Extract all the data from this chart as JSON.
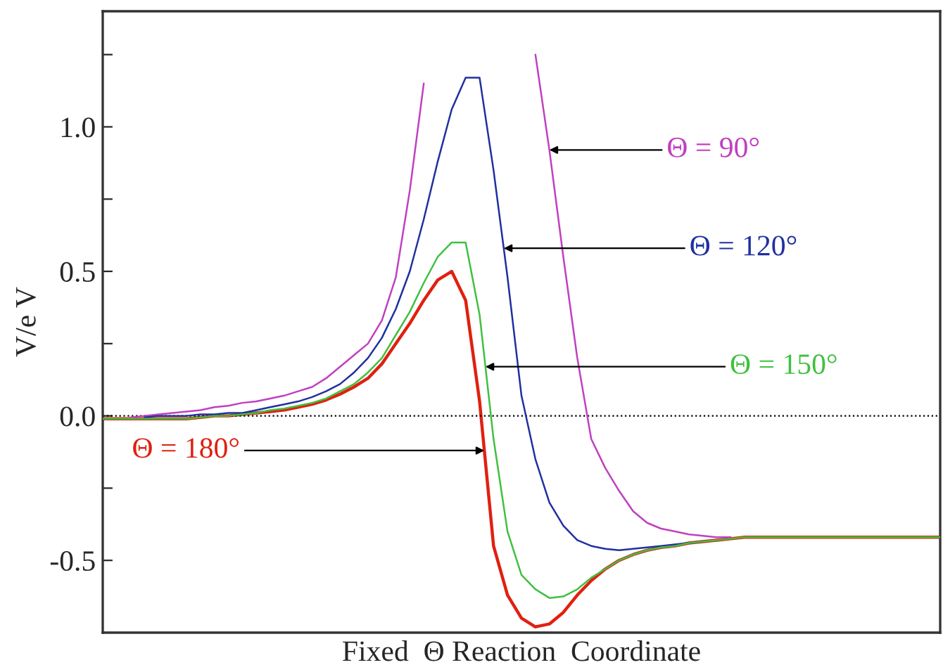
{
  "chart_data": {
    "type": "line",
    "xlabel": "Fixed  Θ Reaction  Coordinate",
    "ylabel": "V/e V",
    "categories": [
      null,
      null,
      null,
      null,
      null,
      null,
      null,
      null,
      null,
      null,
      null,
      null,
      null,
      null,
      null,
      null,
      null,
      null,
      null,
      null,
      null,
      null,
      null,
      null,
      null,
      null,
      null,
      null,
      null,
      null,
      null,
      null,
      null,
      null,
      null,
      null,
      null,
      null,
      null,
      null,
      null,
      null,
      null,
      null,
      null,
      null,
      null,
      null,
      null,
      null,
      null,
      null,
      null,
      null,
      null,
      null,
      null,
      null,
      null,
      null,
      null
    ],
    "series": [
      {
        "name": "Θ = 90°",
        "color": "#c040c0",
        "values": [
          null,
          null,
          -0.005,
          0.0,
          0.005,
          0.01,
          0.015,
          0.02,
          0.03,
          0.035,
          0.045,
          0.05,
          0.06,
          0.07,
          0.085,
          0.1,
          0.13,
          0.17,
          0.21,
          0.25,
          0.33,
          0.48,
          0.78,
          1.15,
          null,
          null,
          null,
          null,
          null,
          null,
          null,
          1.25,
          0.92,
          0.55,
          0.2,
          -0.08,
          -0.18,
          -0.26,
          -0.33,
          -0.37,
          -0.39,
          -0.4,
          -0.41,
          -0.415,
          -0.42,
          -0.42,
          null,
          null,
          null,
          null,
          null,
          null,
          null,
          null,
          null,
          null,
          null,
          null,
          null,
          null,
          null
        ]
      },
      {
        "name": "Θ = 120°",
        "color": "#2030a0",
        "values": [
          null,
          null,
          null,
          -0.005,
          0.0,
          0.0,
          0.0,
          0.005,
          0.005,
          0.01,
          0.01,
          0.02,
          0.03,
          0.04,
          0.05,
          0.065,
          0.085,
          0.11,
          0.15,
          0.2,
          0.27,
          0.37,
          0.5,
          0.68,
          0.88,
          1.06,
          1.17,
          1.17,
          0.85,
          0.48,
          0.07,
          -0.15,
          -0.3,
          -0.38,
          -0.43,
          -0.45,
          -0.46,
          -0.465,
          -0.46,
          -0.455,
          -0.45,
          -0.445,
          -0.44,
          -0.435,
          null,
          null,
          null,
          null,
          null,
          null,
          null,
          null,
          null,
          null,
          null,
          null,
          null,
          null,
          null,
          null,
          null
        ]
      },
      {
        "name": "Θ = 150°",
        "color": "#40c040",
        "values": [
          -0.01,
          -0.01,
          -0.01,
          -0.01,
          -0.01,
          -0.01,
          -0.01,
          -0.005,
          0.0,
          0.0,
          0.005,
          0.01,
          0.02,
          0.025,
          0.035,
          0.045,
          0.06,
          0.085,
          0.11,
          0.15,
          0.2,
          0.28,
          0.36,
          0.46,
          0.55,
          0.6,
          0.6,
          0.35,
          -0.08,
          -0.4,
          -0.55,
          -0.6,
          -0.63,
          -0.625,
          -0.6,
          -0.56,
          -0.53,
          -0.5,
          -0.48,
          -0.465,
          -0.455,
          -0.45,
          -0.44,
          -0.435,
          -0.43,
          -0.425,
          -0.42,
          -0.42,
          -0.42,
          -0.42,
          -0.42,
          -0.42,
          -0.42,
          -0.42,
          -0.42,
          -0.42,
          -0.42,
          -0.42,
          -0.42,
          -0.42,
          -0.42
        ]
      },
      {
        "name": "Θ = 180°",
        "color": "#e02010",
        "values": [
          -0.01,
          -0.01,
          -0.01,
          -0.01,
          -0.01,
          -0.01,
          -0.01,
          -0.005,
          0.0,
          0.0,
          0.005,
          0.01,
          0.015,
          0.02,
          0.03,
          0.04,
          0.055,
          0.075,
          0.1,
          0.13,
          0.18,
          0.25,
          0.32,
          0.4,
          0.47,
          0.5,
          0.4,
          0.05,
          -0.45,
          -0.62,
          -0.7,
          -0.73,
          -0.72,
          -0.68,
          -0.62,
          -0.57,
          -0.53,
          -0.5,
          -0.48,
          -0.465,
          -0.455,
          -0.45,
          -0.44,
          -0.435,
          -0.43,
          -0.425,
          -0.42,
          -0.42,
          -0.42,
          -0.42,
          -0.42,
          -0.42,
          -0.42,
          -0.42,
          -0.42,
          -0.42,
          -0.42,
          -0.42,
          -0.42,
          -0.42,
          -0.42
        ]
      }
    ],
    "ylim": [
      -0.75,
      1.4
    ],
    "yticks": [
      {
        "value": -0.5,
        "label": "-0.5"
      },
      {
        "value": -0.25,
        "label": null
      },
      {
        "value": 0,
        "label": "0.0"
      },
      {
        "value": 0.25,
        "label": null
      },
      {
        "value": 0.5,
        "label": "0.5"
      },
      {
        "value": 0.75,
        "label": null
      },
      {
        "value": 1.0,
        "label": "1.0"
      },
      {
        "value": 1.25,
        "label": null
      }
    ],
    "tick_labels": "y",
    "ref_lines": [
      {
        "axis": "y",
        "value": 0,
        "label": null,
        "color": "#000000",
        "line_style": "dotted"
      }
    ],
    "grid": false,
    "legend": false,
    "marker": "none",
    "line_style": "solid"
  }
}
